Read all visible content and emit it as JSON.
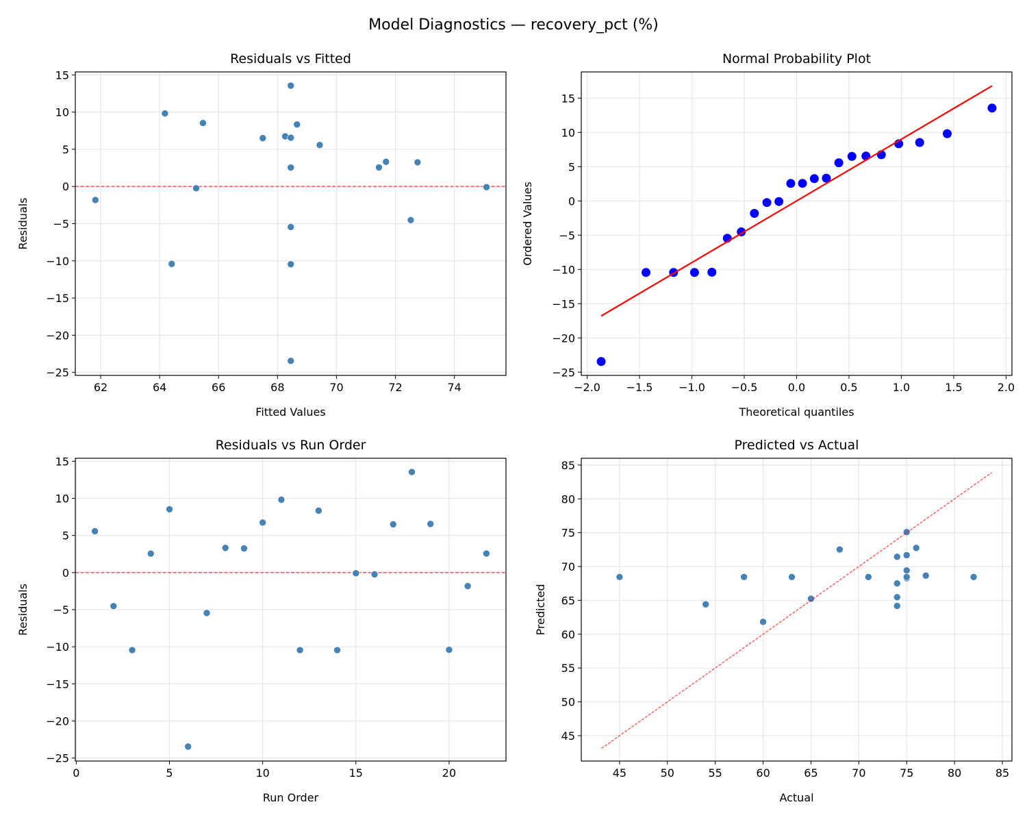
{
  "title": "Model Diagnostics — recovery_pct (%)",
  "colors": {
    "points": "#4682b4",
    "qq_points": "#0000ff",
    "reference": "#ff0000",
    "grid": "#e6e6e6"
  },
  "chart_data": [
    {
      "type": "scatter",
      "title": "Residuals vs Fitted",
      "xlabel": "Fitted Values",
      "ylabel": "Residuals",
      "xlim": [
        61.14,
        75.75
      ],
      "ylim": [
        -25.4,
        15.4
      ],
      "grid": true,
      "xticks": [
        62,
        64,
        66,
        68,
        70,
        72,
        74
      ],
      "xtick_labels": [
        "62",
        "64",
        "66",
        "68",
        "70",
        "72",
        "74"
      ],
      "yticks": [
        -25,
        -20,
        -15,
        -10,
        -5,
        0,
        5,
        10,
        15
      ],
      "ytick_labels": [
        "−25",
        "−20",
        "−15",
        "−10",
        "−5",
        "0",
        "5",
        "10",
        "15"
      ],
      "reference": {
        "kind": "hline",
        "y": 0,
        "style": "dashed"
      },
      "x": [
        69.43,
        72.52,
        68.45,
        68.45,
        65.47,
        68.45,
        68.45,
        71.68,
        72.75,
        68.26,
        64.18,
        68.45,
        68.66,
        68.45,
        75.09,
        65.24,
        67.5,
        68.45,
        68.45,
        64.41,
        61.82,
        71.44
      ],
      "y": [
        5.57,
        -4.52,
        -10.45,
        2.55,
        8.53,
        -23.45,
        -5.45,
        3.32,
        3.25,
        6.74,
        9.82,
        -10.45,
        8.34,
        -10.45,
        -0.09,
        -0.24,
        6.5,
        13.55,
        6.55,
        -10.41,
        -1.82,
        2.56
      ]
    },
    {
      "type": "scatter",
      "title": "Normal Probability Plot",
      "xlabel": "Theoretical quantiles",
      "ylabel": "Ordered Values",
      "xlim": [
        -2.056,
        2.056
      ],
      "ylim": [
        -25.47,
        18.83
      ],
      "grid": true,
      "xticks": [
        -2.0,
        -1.5,
        -1.0,
        -0.5,
        0.0,
        0.5,
        1.0,
        1.5,
        2.0
      ],
      "xtick_labels": [
        "−2.0",
        "−1.5",
        "−1.0",
        "−0.5",
        "0.0",
        "0.5",
        "1.0",
        "1.5",
        "2.0"
      ],
      "yticks": [
        -25,
        -20,
        -15,
        -10,
        -5,
        0,
        5,
        10,
        15
      ],
      "ytick_labels": [
        "−25",
        "−20",
        "−15",
        "−10",
        "−5",
        "0",
        "5",
        "10",
        "15"
      ],
      "reference": {
        "kind": "fit_line",
        "slope": 9.0,
        "intercept": 0.0,
        "style": "solid"
      },
      "x": [
        -1.866,
        -1.438,
        -1.175,
        -0.975,
        -0.809,
        -0.662,
        -0.528,
        -0.403,
        -0.284,
        -0.169,
        -0.056,
        0.056,
        0.169,
        0.284,
        0.403,
        0.528,
        0.662,
        0.809,
        0.975,
        1.175,
        1.438,
        1.866
      ],
      "y": [
        -23.45,
        -10.45,
        -10.45,
        -10.45,
        -10.41,
        -5.45,
        -4.52,
        -1.82,
        -0.24,
        -0.09,
        2.55,
        2.56,
        3.25,
        3.32,
        5.57,
        6.5,
        6.55,
        6.74,
        8.34,
        8.53,
        9.82,
        13.55
      ]
    },
    {
      "type": "scatter",
      "title": "Residuals vs Run Order",
      "xlabel": "Run Order",
      "ylabel": "Residuals",
      "xlim": [
        -0.05,
        23.05
      ],
      "ylim": [
        -25.4,
        15.4
      ],
      "grid": true,
      "xticks": [
        0,
        5,
        10,
        15,
        20
      ],
      "xtick_labels": [
        "0",
        "5",
        "10",
        "15",
        "20"
      ],
      "yticks": [
        -25,
        -20,
        -15,
        -10,
        -5,
        0,
        5,
        10,
        15
      ],
      "ytick_labels": [
        "−25",
        "−20",
        "−15",
        "−10",
        "−5",
        "0",
        "5",
        "10",
        "15"
      ],
      "reference": {
        "kind": "hline",
        "y": 0,
        "style": "dashed"
      },
      "x": [
        1,
        2,
        3,
        4,
        5,
        6,
        7,
        8,
        9,
        10,
        11,
        12,
        13,
        14,
        15,
        16,
        17,
        18,
        19,
        20,
        21,
        22
      ],
      "y": [
        5.57,
        -4.52,
        -10.45,
        2.55,
        8.53,
        -23.45,
        -5.45,
        3.32,
        3.25,
        6.74,
        9.82,
        -10.45,
        8.34,
        -10.45,
        -0.09,
        -0.24,
        6.5,
        13.55,
        6.55,
        -10.41,
        -1.82,
        2.56
      ]
    },
    {
      "type": "scatter",
      "title": "Predicted vs Actual",
      "xlabel": "Actual",
      "ylabel": "Predicted",
      "xlim": [
        41.0,
        86.0
      ],
      "ylim": [
        41.25,
        86.0
      ],
      "grid": true,
      "xticks": [
        45,
        50,
        55,
        60,
        65,
        70,
        75,
        80,
        85
      ],
      "xtick_labels": [
        "45",
        "50",
        "55",
        "60",
        "65",
        "70",
        "75",
        "80",
        "85"
      ],
      "yticks": [
        45,
        50,
        55,
        60,
        65,
        70,
        75,
        80,
        85
      ],
      "ytick_labels": [
        "45",
        "50",
        "55",
        "60",
        "65",
        "70",
        "75",
        "80",
        "85"
      ],
      "reference": {
        "kind": "diagonal",
        "from": 43.1,
        "to": 83.9,
        "style": "dashed"
      },
      "x": [
        75,
        68,
        58,
        71,
        74,
        45,
        63,
        75,
        76,
        75,
        74,
        58,
        77,
        58,
        75,
        65,
        74,
        82,
        75,
        54,
        60,
        74
      ],
      "y": [
        69.43,
        72.52,
        68.45,
        68.45,
        65.47,
        68.45,
        68.45,
        71.68,
        72.75,
        68.26,
        64.18,
        68.45,
        68.66,
        68.45,
        75.09,
        65.24,
        67.5,
        68.45,
        68.45,
        64.41,
        61.82,
        71.44
      ]
    }
  ]
}
